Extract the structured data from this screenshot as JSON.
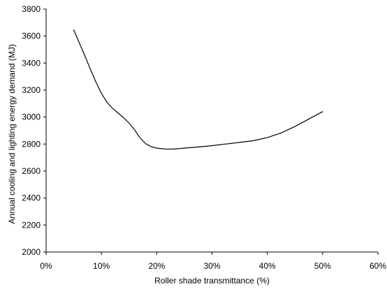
{
  "chart_data": {
    "type": "line",
    "title": "",
    "xlabel": "Roller shade transmittance (%)",
    "ylabel": "Annual cooling and lighting energy demand (MJ)",
    "xlim": [
      0,
      60
    ],
    "ylim": [
      2000,
      3800
    ],
    "x_ticks": [
      0,
      10,
      20,
      30,
      40,
      50,
      60
    ],
    "x_tick_labels": [
      "0%",
      "10%",
      "20%",
      "30%",
      "40%",
      "50%",
      "60%"
    ],
    "y_ticks": [
      2000,
      2200,
      2400,
      2600,
      2800,
      3000,
      3200,
      3400,
      3600,
      3800
    ],
    "y_tick_labels": [
      "2000",
      "2200",
      "2400",
      "2600",
      "2800",
      "3000",
      "3200",
      "3400",
      "3600",
      "3800"
    ],
    "grid": false,
    "legend": "none",
    "series": [
      {
        "color": "#000000",
        "x": [
          5,
          6,
          7,
          8,
          9,
          10,
          11,
          12,
          13,
          14,
          15,
          16,
          17,
          18,
          19,
          20,
          21,
          22,
          23,
          24,
          25,
          27.5,
          30,
          32.5,
          35,
          37.5,
          40,
          42.5,
          45,
          47.5,
          50
        ],
        "y": [
          3645,
          3550,
          3455,
          3355,
          3260,
          3175,
          3110,
          3065,
          3030,
          2995,
          2955,
          2905,
          2845,
          2803,
          2780,
          2770,
          2765,
          2762,
          2763,
          2766,
          2770,
          2778,
          2788,
          2800,
          2812,
          2825,
          2848,
          2882,
          2930,
          2985,
          3040
        ]
      }
    ]
  }
}
